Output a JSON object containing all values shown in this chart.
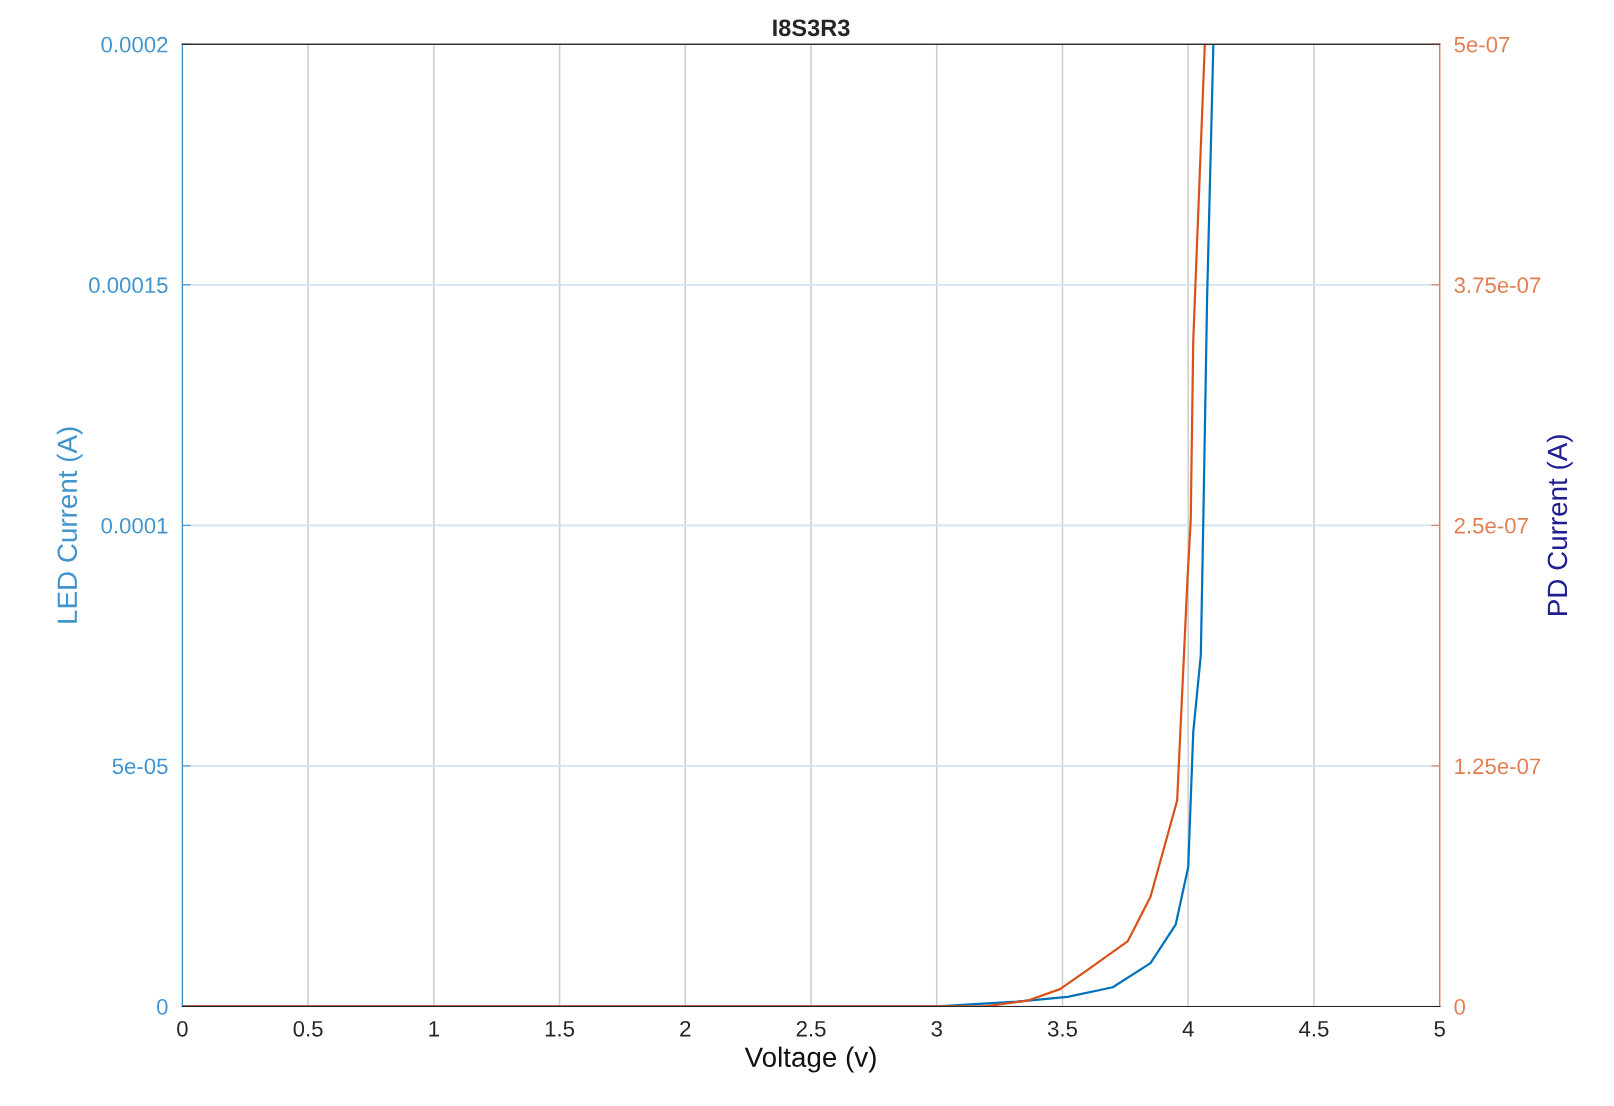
{
  "chart_data": {
    "type": "line",
    "title": "I8S3R3",
    "xlabel": "Voltage (v)",
    "ylabel": "LED Current (A)",
    "y2label": "PD Current (A)",
    "series": [
      {
        "color": "#0072bd",
        "x": [
          0,
          2.5,
          3.0,
          3.32,
          3.52,
          3.7,
          3.85,
          3.95,
          4.0,
          4.02,
          4.05,
          4.06,
          4.075,
          4.1
        ],
        "values": [
          0,
          0,
          0,
          1e-06,
          2e-06,
          4e-06,
          9e-06,
          1.7e-05,
          2.9e-05,
          5.7e-05,
          7.3e-05,
          0.000101,
          0.000147,
          0.0002
        ]
      },
      {
        "color": "#d95319",
        "axis": "y2",
        "x": [
          0,
          3.0,
          3.19,
          3.36,
          3.49,
          3.6,
          3.76,
          3.85,
          3.956,
          3.997,
          4.01,
          4.02,
          4.066
        ],
        "values": [
          0,
          0,
          0,
          3e-09,
          9e-09,
          1.9e-08,
          3.4e-08,
          5.7e-08,
          1.07e-07,
          2.22e-07,
          2.53e-07,
          3.46e-07,
          5e-07
        ]
      }
    ],
    "xlim": [
      0,
      5
    ],
    "xticks": [
      0,
      0.5,
      1,
      1.5,
      2,
      2.5,
      3,
      3.5,
      4,
      4.5,
      5
    ],
    "ylim": [
      0,
      0.0002
    ],
    "yticks": [
      0,
      5e-05,
      0.0001,
      0.00015,
      0.0002
    ],
    "y2lim": [
      0,
      5e-07
    ],
    "y2ticks": [
      0,
      1.25e-07,
      2.5e-07,
      3.75e-07,
      5e-07
    ],
    "grid": true,
    "line_style": "solid"
  }
}
